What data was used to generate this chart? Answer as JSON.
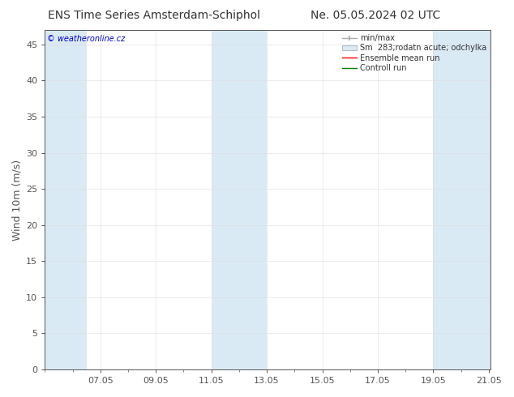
{
  "title_left": "ENS Time Series Amsterdam-Schiphol",
  "title_right": "Ne. 05.05.2024 02 UTC",
  "ylabel": "Wind 10m (m/s)",
  "watermark": "© weatheronline.cz",
  "legend_entries": [
    {
      "label": "min/max",
      "color": "#b0b0b0",
      "type": "errorbar"
    },
    {
      "label": "Sm  283;rodatn acute; odchylka",
      "color": "#dce8f0",
      "type": "fill"
    },
    {
      "label": "Ensemble mean run",
      "color": "#ff0000",
      "type": "line"
    },
    {
      "label": "Controll run",
      "color": "#008000",
      "type": "line"
    }
  ],
  "ylim": [
    0,
    47
  ],
  "yticks": [
    0,
    5,
    10,
    15,
    20,
    25,
    30,
    35,
    40,
    45
  ],
  "xtick_positions": [
    7,
    9,
    11,
    13,
    15,
    17,
    19,
    21
  ],
  "xtick_labels": [
    "07.05",
    "09.05",
    "11.05",
    "13.05",
    "15.05",
    "17.05",
    "19.05",
    "21.05"
  ],
  "xlim": [
    5.0,
    21.05
  ],
  "shaded_bands": [
    {
      "x_start": 5.0,
      "x_end": 6.5,
      "color": "#daeaf5"
    },
    {
      "x_start": 11.0,
      "x_end": 13.0,
      "color": "#daeaf5"
    },
    {
      "x_start": 19.0,
      "x_end": 21.05,
      "color": "#daeaf5"
    }
  ],
  "spine_color": "#555555",
  "tick_color": "#555555",
  "background_color": "#ffffff",
  "title_fontsize": 10,
  "axis_label_fontsize": 9,
  "tick_fontsize": 8,
  "watermark_color": "#0000cc",
  "watermark_fontsize": 7,
  "legend_fontsize": 7,
  "title_color": "#333333"
}
